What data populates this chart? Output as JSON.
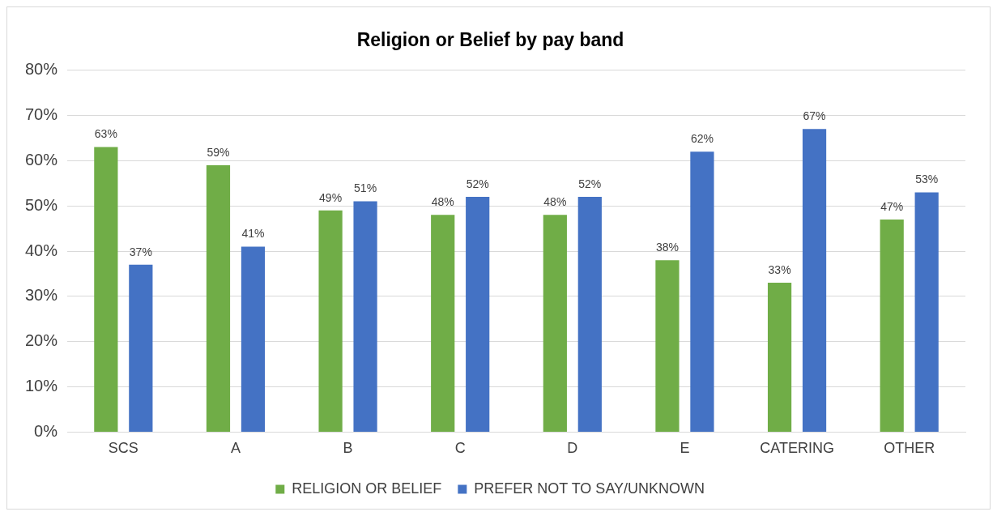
{
  "chart_data": {
    "type": "bar",
    "title": "Religion or Belief by pay band",
    "categories": [
      "SCS",
      "A",
      "B",
      "C",
      "D",
      "E",
      "CATERING",
      "OTHER"
    ],
    "series": [
      {
        "name": "RELIGION OR BELIEF",
        "color": "#70ad47",
        "values": [
          63,
          59,
          49,
          48,
          48,
          38,
          33,
          47
        ],
        "value_labels": [
          "63%",
          "59%",
          "49%",
          "48%",
          "48%",
          "38%",
          "33%",
          "47%"
        ]
      },
      {
        "name": "PREFER NOT TO SAY/UNKNOWN",
        "color": "#4472c4",
        "values": [
          37,
          41,
          51,
          52,
          52,
          62,
          67,
          53
        ],
        "value_labels": [
          "37%",
          "41%",
          "51%",
          "52%",
          "52%",
          "62%",
          "67%",
          "53%"
        ]
      }
    ],
    "ylim": [
      0,
      80
    ],
    "yticks": [
      {
        "value": 0,
        "label": "0%"
      },
      {
        "value": 10,
        "label": "10%"
      },
      {
        "value": 20,
        "label": "20%"
      },
      {
        "value": 30,
        "label": "30%"
      },
      {
        "value": 40,
        "label": "40%"
      },
      {
        "value": 50,
        "label": "50%"
      },
      {
        "value": 60,
        "label": "60%"
      },
      {
        "value": 70,
        "label": "70%"
      },
      {
        "value": 80,
        "label": "80%"
      }
    ],
    "grid": "y",
    "legend": "bottom"
  }
}
